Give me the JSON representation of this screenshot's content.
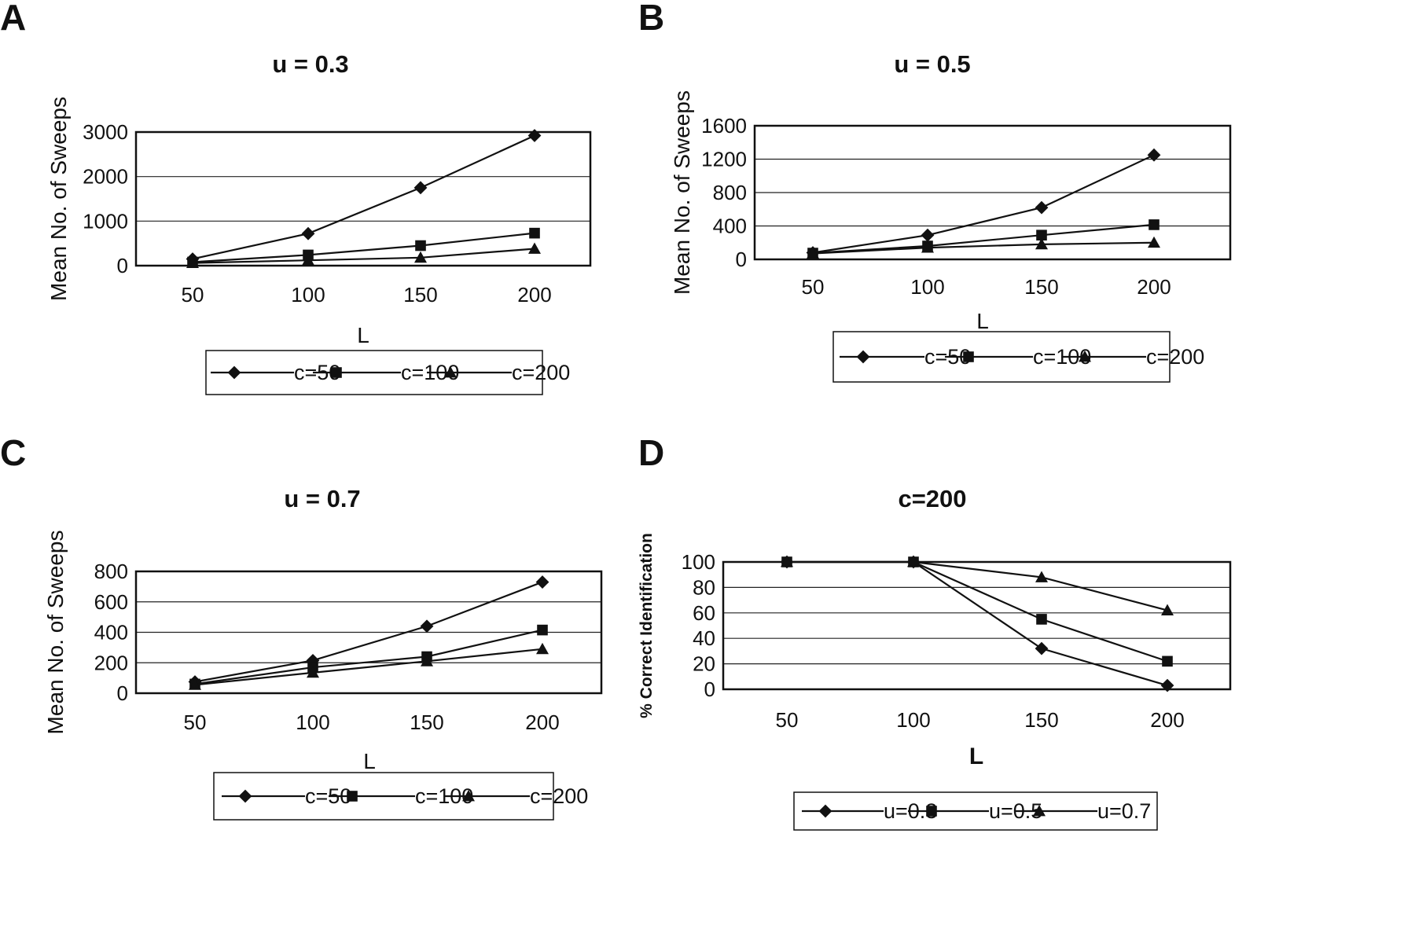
{
  "figure": {
    "panels": [
      "A",
      "B",
      "C",
      "D"
    ]
  },
  "chart_data": [
    {
      "panel": "A",
      "type": "line",
      "title": "u = 0.3",
      "xlabel": "L",
      "ylabel": "Mean No. of Sweeps",
      "categories": [
        "50",
        "100",
        "150",
        "200"
      ],
      "ylim": [
        0,
        3000
      ],
      "yticks": [
        0,
        1000,
        2000,
        3000
      ],
      "grid": true,
      "legend_position": "bottom",
      "series": [
        {
          "name": "c=50",
          "marker": "diamond",
          "values": [
            150,
            720,
            1750,
            2920
          ]
        },
        {
          "name": "c=100",
          "marker": "square",
          "values": [
            80,
            240,
            450,
            730
          ]
        },
        {
          "name": "c=200",
          "marker": "triangle",
          "values": [
            60,
            120,
            180,
            380
          ]
        }
      ]
    },
    {
      "panel": "B",
      "type": "line",
      "title": "u = 0.5",
      "xlabel": "L",
      "ylabel": "Mean No. of Sweeps",
      "categories": [
        "50",
        "100",
        "150",
        "200"
      ],
      "ylim": [
        0,
        1600
      ],
      "yticks": [
        0,
        400,
        800,
        1200,
        1600
      ],
      "grid": true,
      "legend_position": "bottom",
      "series": [
        {
          "name": "c=50",
          "marker": "diamond",
          "values": [
            80,
            290,
            620,
            1250
          ]
        },
        {
          "name": "c=100",
          "marker": "square",
          "values": [
            75,
            160,
            290,
            415
          ]
        },
        {
          "name": "c=200",
          "marker": "triangle",
          "values": [
            70,
            140,
            180,
            200
          ]
        }
      ]
    },
    {
      "panel": "C",
      "type": "line",
      "title": "u = 0.7",
      "xlabel": "L",
      "ylabel": "Mean No. of Sweeps",
      "categories": [
        "50",
        "100",
        "150",
        "200"
      ],
      "ylim": [
        0,
        800
      ],
      "yticks": [
        0,
        200,
        400,
        600,
        800
      ],
      "grid": true,
      "legend_position": "bottom",
      "series": [
        {
          "name": "c=50",
          "marker": "diamond",
          "values": [
            75,
            215,
            440,
            730
          ]
        },
        {
          "name": "c=100",
          "marker": "square",
          "values": [
            60,
            170,
            240,
            415
          ]
        },
        {
          "name": "c=200",
          "marker": "triangle",
          "values": [
            55,
            135,
            210,
            290
          ]
        }
      ]
    },
    {
      "panel": "D",
      "type": "line",
      "title": "c=200",
      "xlabel": "L",
      "ylabel": "% Correct Identification",
      "categories": [
        "50",
        "100",
        "150",
        "200"
      ],
      "ylim": [
        0,
        100
      ],
      "yticks": [
        0,
        20,
        40,
        60,
        80,
        100
      ],
      "grid": true,
      "legend_position": "bottom",
      "series": [
        {
          "name": "u=0.3",
          "marker": "diamond",
          "values": [
            100,
            100,
            32,
            3
          ]
        },
        {
          "name": "u=0.5",
          "marker": "square",
          "values": [
            100,
            100,
            55,
            22
          ]
        },
        {
          "name": "u=0.7",
          "marker": "triangle",
          "values": [
            100,
            100,
            88,
            62
          ]
        }
      ]
    }
  ]
}
